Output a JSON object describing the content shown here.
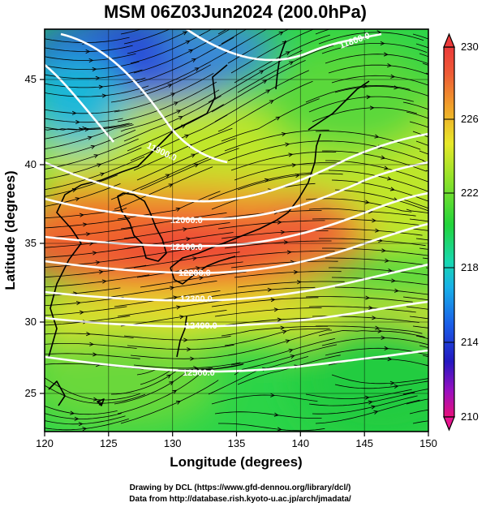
{
  "title": "MSM 06Z03Jun2024 (200.0hPa)",
  "xlabel": "Longitude (degrees)",
  "ylabel": "Latitude  (degrees)",
  "x_ticks": [
    "120",
    "125",
    "130",
    "135",
    "140",
    "145",
    "150"
  ],
  "y_ticks": [
    "25",
    "30",
    "35",
    "40",
    "45"
  ],
  "colorbar": {
    "ticks": [
      "230",
      "226",
      "222",
      "218",
      "214",
      "210"
    ],
    "colors": [
      "#e8107a",
      "#8a12c8",
      "#1818c0",
      "#1a6fe8",
      "#18c8e8",
      "#18d8a0",
      "#22d43a",
      "#8ee22a",
      "#e8e82a",
      "#f0a02a",
      "#ee5a36",
      "#ec3a3a"
    ]
  },
  "contour_labels": [
    "11800.0",
    "11900.0",
    "12000.0",
    "12100.0",
    "12200.0",
    "12300.0",
    "12400.0",
    "12500.0"
  ],
  "credits": {
    "line1": "Drawing by DCL (https://www.gfd-dennou.org/library/dcl/)",
    "line2": "Data from http://database.rish.kyoto-u.ac.jp/arch/jmadata/"
  }
}
